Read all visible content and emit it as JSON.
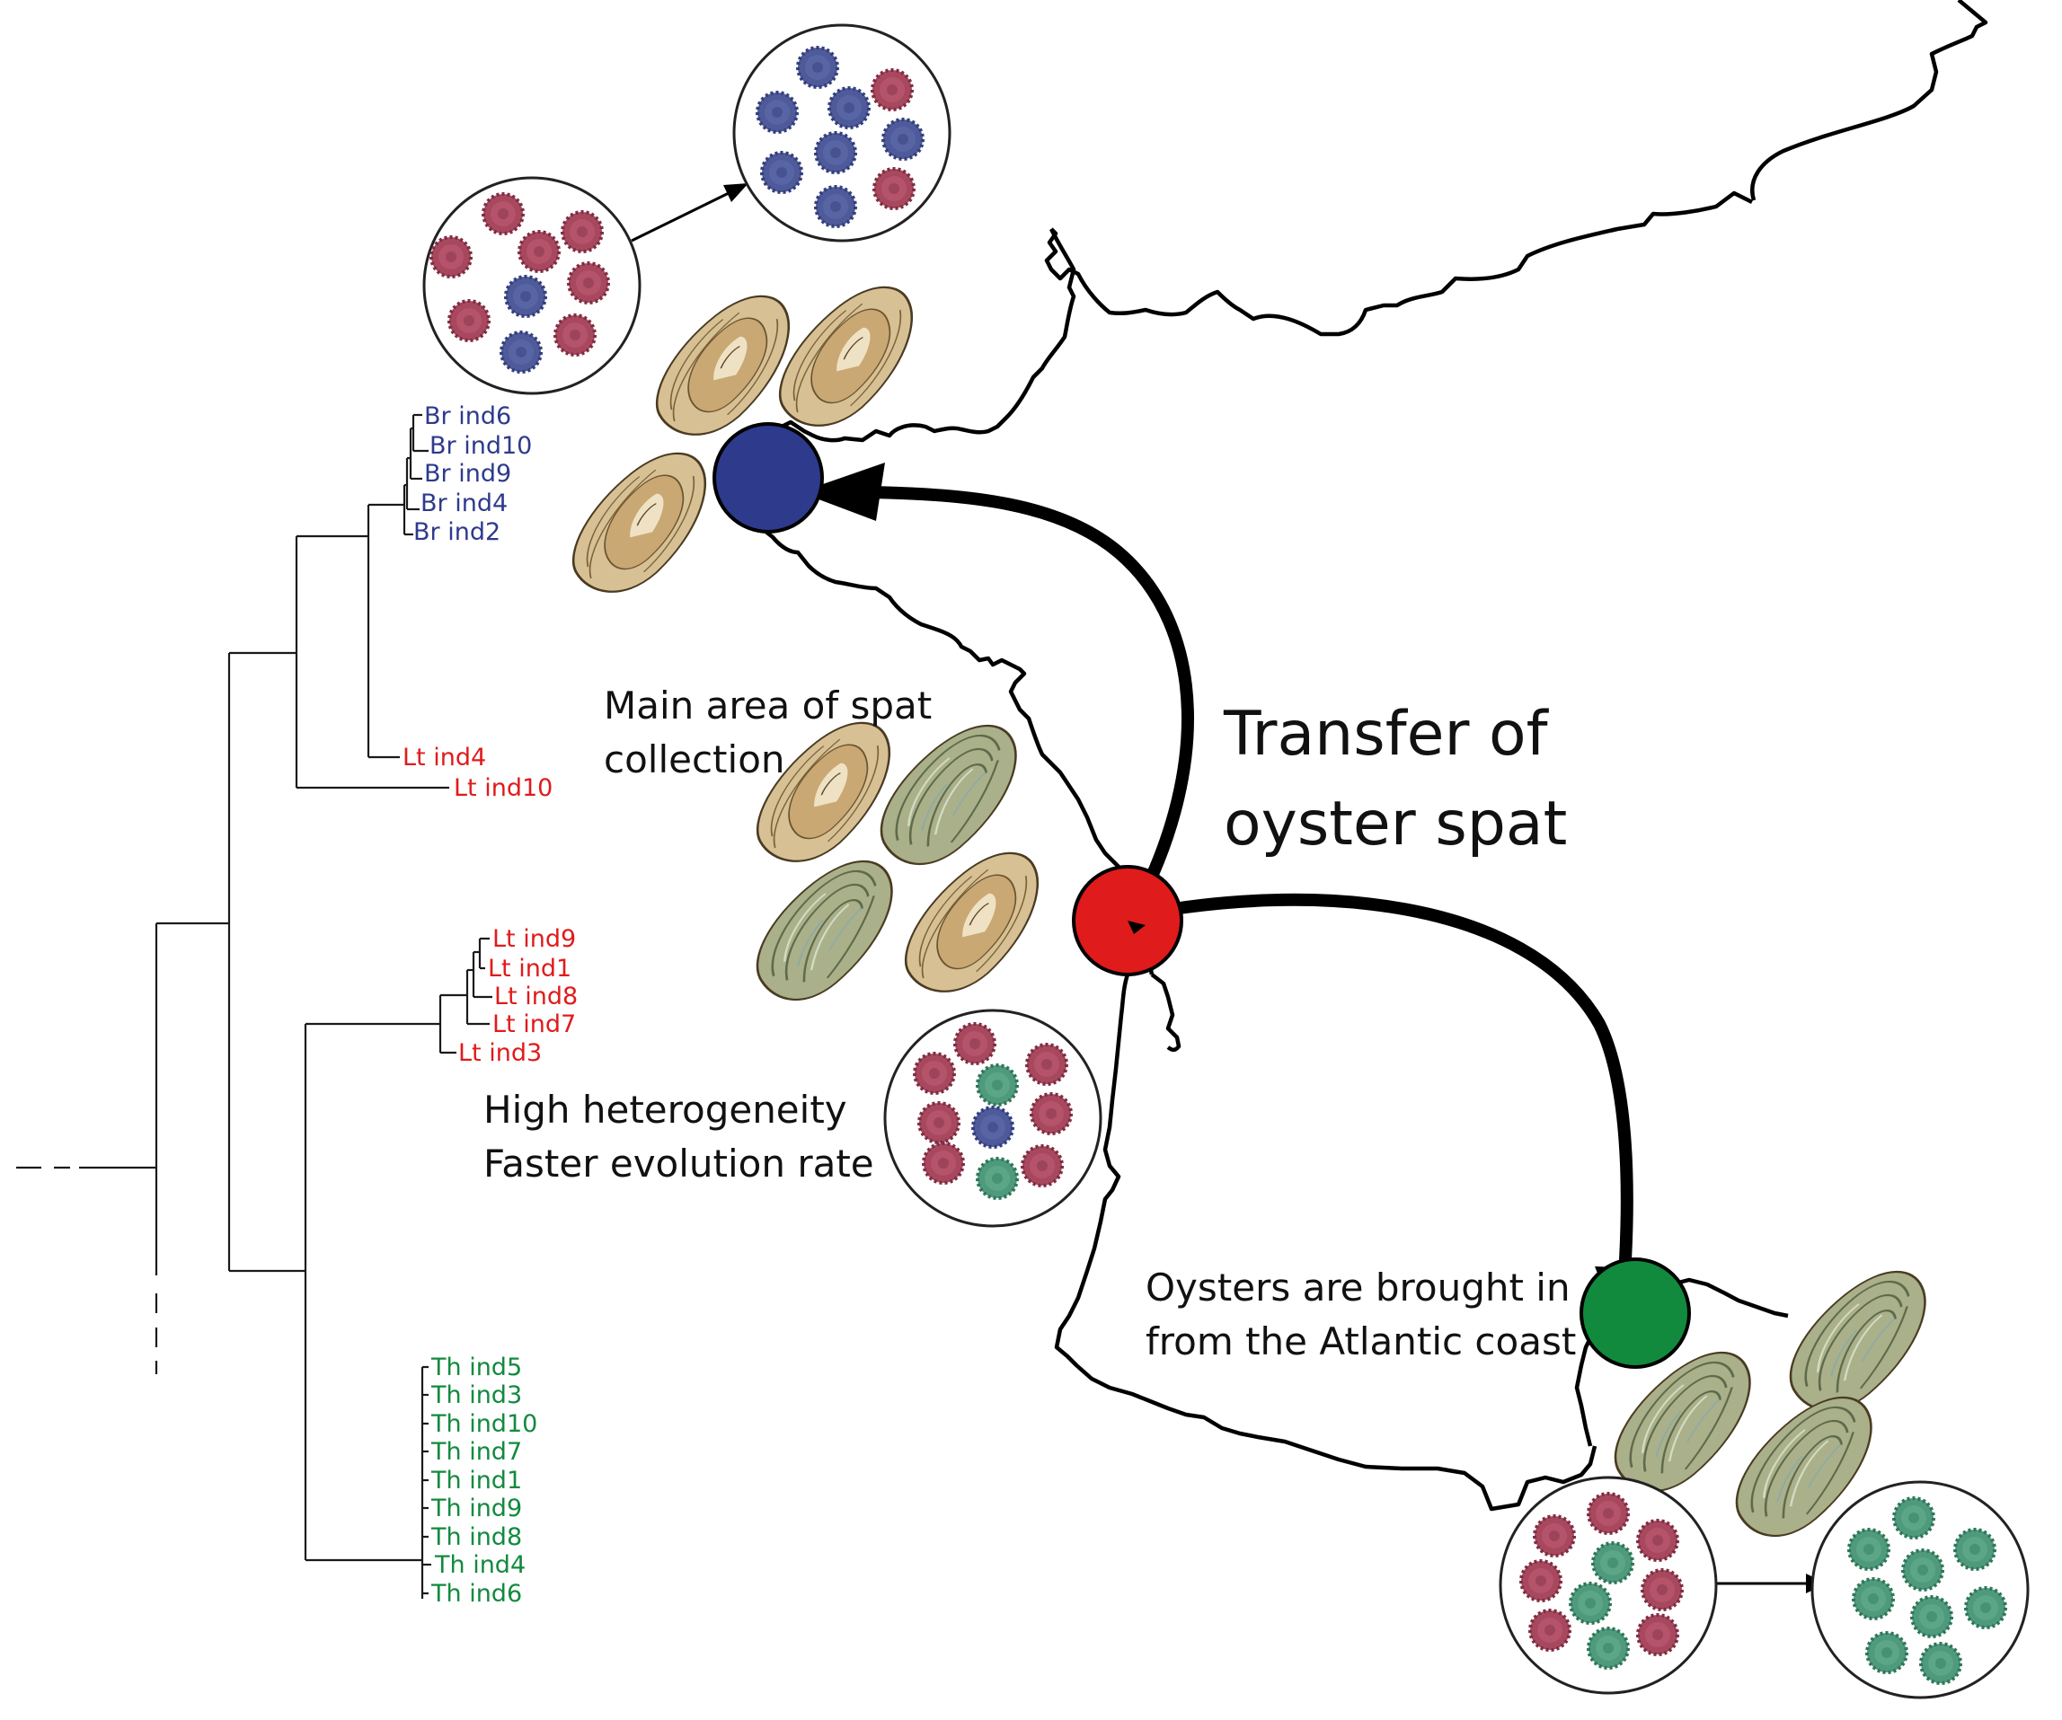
{
  "colors": {
    "brest": "#2e3a8c",
    "leucate": "#e01b1b",
    "thau": "#128a3e",
    "virus_red": "#a8485f",
    "virus_blue": "#4e5a99",
    "virus_green": "#4f9a7c",
    "oyster_tan": "#d8c095",
    "oyster_green": "#a9b08a"
  },
  "tree": {
    "brest_tips": [
      "Br ind6",
      "Br ind10",
      "Br ind9",
      "Br ind4",
      "Br ind2"
    ],
    "leucate_outliers": [
      "Lt ind4",
      "Lt ind10"
    ],
    "leucate_tips": [
      "Lt ind9",
      "Lt ind1",
      "Lt ind8",
      "Lt ind7",
      "Lt ind3"
    ],
    "thau_tips": [
      "Th ind5",
      "Th ind3",
      "Th ind10",
      "Th ind7",
      "Th ind1",
      "Th ind9",
      "Th ind8",
      "Th ind4",
      "Th ind6"
    ]
  },
  "labels": {
    "spat_line1": "Main area of spat",
    "spat_line2": "collection",
    "hetero_line1": "High heterogeneity",
    "hetero_line2": "Faster evolution rate",
    "transfer_line1": "Transfer of",
    "transfer_line2": "oyster spat",
    "brought_line1": "Oysters are brought in",
    "brought_line2": "from the Atlantic coast"
  },
  "icons": {
    "oyster": "oyster-icon",
    "virus": "virus-particle-icon",
    "site_marker": "site-marker-icon"
  }
}
